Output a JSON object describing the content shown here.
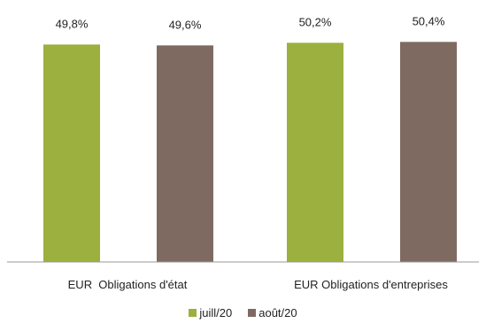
{
  "chart_data": {
    "type": "bar",
    "categories": [
      "EUR  Obligations d'état",
      "EUR Obligations d'entreprises"
    ],
    "series": [
      {
        "name": "juill/20",
        "values": [
          49.8,
          50.2
        ],
        "labels": [
          "49,8%",
          "50,2%"
        ],
        "color": "#9bb03f"
      },
      {
        "name": "août/20",
        "values": [
          49.6,
          50.4
        ],
        "labels": [
          "49,6%",
          "50,4%"
        ],
        "color": "#7f6a61"
      }
    ],
    "ylim": [
      0,
      60
    ],
    "grid": false,
    "legend_position": "bottom"
  }
}
